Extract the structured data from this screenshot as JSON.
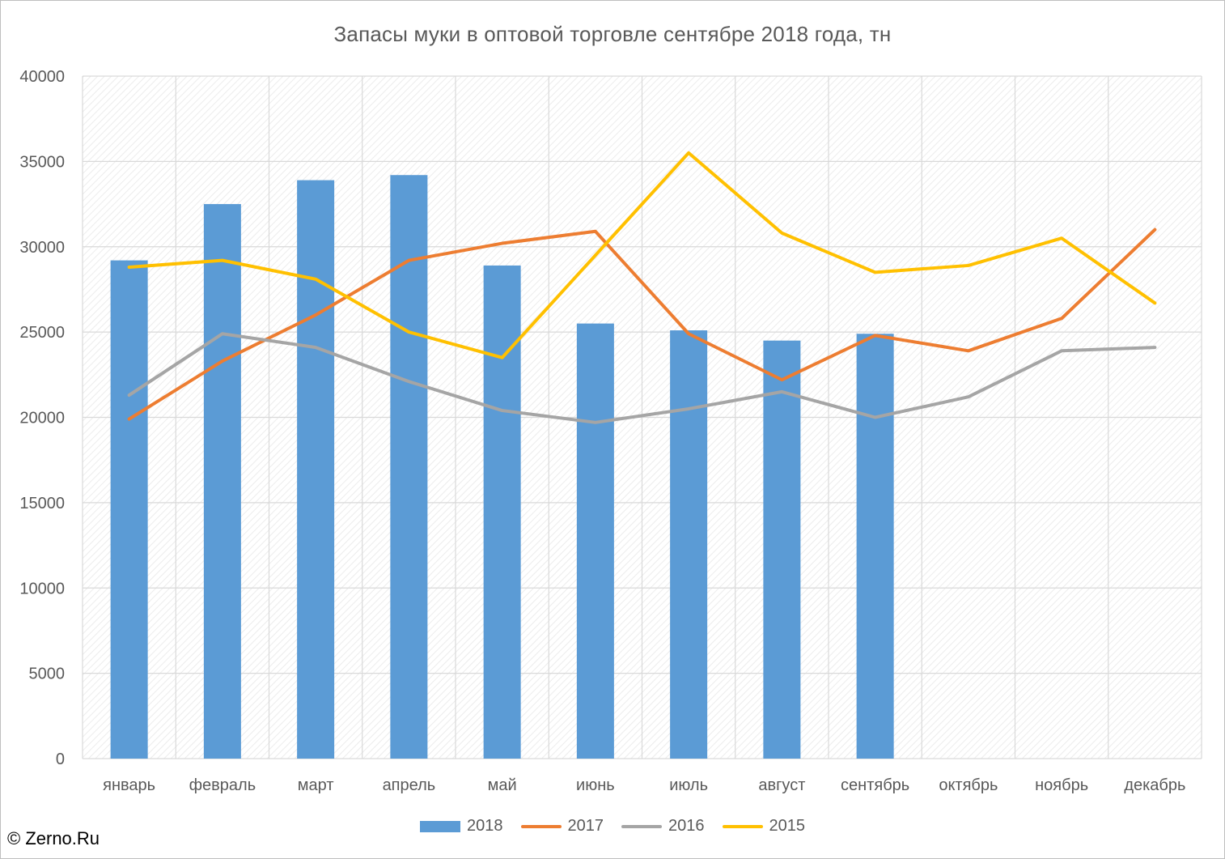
{
  "title": "Запасы муки в оптовой торговле сентябре 2018 года, тн",
  "credit": "© Zerno.Ru",
  "chart_data": {
    "type": "bar+line",
    "title": "Запасы муки в оптовой торговле сентябре 2018 года, тн",
    "categories": [
      "январь",
      "февраль",
      "март",
      "апрель",
      "май",
      "июнь",
      "июль",
      "август",
      "сентябрь",
      "октябрь",
      "ноябрь",
      "декабрь"
    ],
    "ylim": [
      0,
      40000
    ],
    "yticks": [
      0,
      5000,
      10000,
      15000,
      20000,
      25000,
      30000,
      35000,
      40000
    ],
    "grid": true,
    "legend_position": "bottom",
    "series": [
      {
        "name": "2018",
        "type": "bar",
        "color": "#5b9bd5",
        "values": [
          29200,
          32500,
          33900,
          34200,
          28900,
          25500,
          25100,
          24500,
          24900,
          null,
          null,
          null
        ]
      },
      {
        "name": "2017",
        "type": "line",
        "color": "#ed7d31",
        "values": [
          19900,
          23300,
          26000,
          29200,
          30200,
          30900,
          24900,
          22200,
          24800,
          23900,
          25800,
          31000
        ]
      },
      {
        "name": "2016",
        "type": "line",
        "color": "#a5a5a5",
        "values": [
          21300,
          24900,
          24100,
          22100,
          20400,
          19700,
          20500,
          21500,
          20000,
          21200,
          23900,
          24100
        ]
      },
      {
        "name": "2015",
        "type": "line",
        "color": "#ffc000",
        "values": [
          28800,
          29200,
          28100,
          25000,
          23500,
          29500,
          35500,
          30800,
          28500,
          28900,
          30500,
          26700
        ]
      }
    ]
  }
}
